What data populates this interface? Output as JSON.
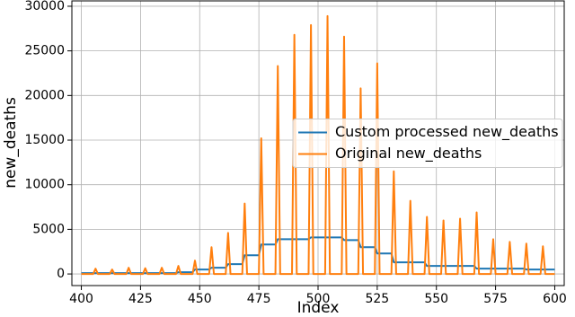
{
  "chart_data": {
    "type": "line",
    "xlabel": "Index",
    "ylabel": "new_deaths",
    "xlim": [
      396,
      604
    ],
    "ylim": [
      -1300,
      30600
    ],
    "xticks": [
      400,
      425,
      450,
      475,
      500,
      525,
      550,
      575,
      600
    ],
    "yticks": [
      0,
      5000,
      10000,
      15000,
      20000,
      25000,
      30000
    ],
    "grid": true,
    "legend": "center right",
    "series": [
      {
        "name": "Custom processed new_deaths",
        "color": "#1f77b4",
        "x": [
          400,
          440,
          441,
          447,
          448,
          454,
          455,
          461,
          462,
          468,
          469,
          475,
          476,
          482,
          483,
          496,
          497,
          510,
          511,
          517,
          518,
          524,
          525,
          531,
          532,
          545,
          546,
          566,
          567,
          587,
          588,
          600
        ],
        "values": [
          100,
          100,
          200,
          200,
          500,
          500,
          700,
          700,
          1100,
          1100,
          2100,
          2100,
          3300,
          3300,
          3900,
          3900,
          4100,
          4100,
          3800,
          3800,
          3000,
          3000,
          2300,
          2300,
          1300,
          1300,
          900,
          900,
          600,
          600,
          500,
          500
        ]
      },
      {
        "name": "Original new_deaths",
        "color": "#ff7f0e",
        "x": [
          400,
          405,
          406,
          407,
          412,
          413,
          414,
          419,
          420,
          421,
          426,
          427,
          428,
          433,
          434,
          435,
          440,
          441,
          442,
          447,
          448,
          449,
          454,
          455,
          456,
          461,
          462,
          463,
          468,
          469,
          470,
          475,
          476,
          477,
          482,
          483,
          484,
          489,
          490,
          491,
          496,
          497,
          498,
          503,
          504,
          505,
          510,
          511,
          512,
          517,
          518,
          519,
          524,
          525,
          526,
          531,
          532,
          533,
          538,
          539,
          540,
          545,
          546,
          547,
          552,
          553,
          554,
          559,
          560,
          561,
          566,
          567,
          568,
          573,
          574,
          575,
          580,
          581,
          582,
          587,
          588,
          589,
          594,
          595,
          596,
          600
        ],
        "values": [
          0,
          0,
          600,
          0,
          0,
          500,
          0,
          0,
          700,
          0,
          0,
          650,
          0,
          0,
          700,
          0,
          0,
          900,
          0,
          0,
          1500,
          0,
          0,
          3000,
          0,
          0,
          4600,
          0,
          0,
          7900,
          0,
          0,
          15200,
          0,
          0,
          23300,
          0,
          0,
          26800,
          0,
          0,
          27900,
          0,
          0,
          28900,
          0,
          0,
          26600,
          0,
          0,
          20800,
          0,
          0,
          23600,
          0,
          0,
          11500,
          0,
          0,
          8200,
          0,
          0,
          6400,
          0,
          0,
          6000,
          0,
          0,
          6200,
          0,
          0,
          6900,
          0,
          0,
          3900,
          0,
          0,
          3600,
          0,
          0,
          3400,
          0,
          0,
          3100,
          0,
          0
        ]
      }
    ]
  }
}
